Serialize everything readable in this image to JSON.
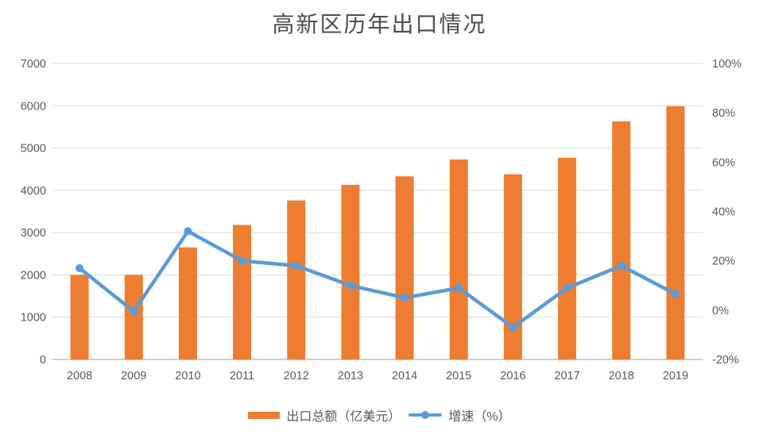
{
  "title": "高新区历年出口情况",
  "colors": {
    "bar": "#ED7D31",
    "line": "#5B9BD5",
    "grid": "#D9D9D9",
    "axis_line": "#BFBFBF",
    "text": "#595959",
    "title_text": "#4d4d4d",
    "background": "#FFFFFF"
  },
  "chart_data": {
    "type": "bar",
    "subtype": "combo-bar-line",
    "title": "高新区历年出口情况",
    "categories": [
      "2008",
      "2009",
      "2010",
      "2011",
      "2012",
      "2013",
      "2014",
      "2015",
      "2016",
      "2017",
      "2018",
      "2019"
    ],
    "series": [
      {
        "name": "出口总额（亿美元）",
        "type": "bar",
        "axis": "left",
        "color": "#ED7D31",
        "values": [
          2000,
          2000,
          2650,
          3180,
          3760,
          4130,
          4330,
          4730,
          4380,
          4770,
          5630,
          5990
        ]
      },
      {
        "name": "增速（%）",
        "type": "line",
        "axis": "right",
        "color": "#5B9BD5",
        "values": [
          17,
          -0.5,
          32,
          20,
          18,
          10,
          5,
          9,
          -7,
          9,
          18,
          6.5
        ]
      }
    ],
    "y_left_axis": {
      "min": 0,
      "max": 7000,
      "step": 1000,
      "ticks": [
        "0",
        "1000",
        "2000",
        "3000",
        "4000",
        "5000",
        "6000",
        "7000"
      ]
    },
    "y_right_axis": {
      "min": -20,
      "max": 100,
      "step": 20,
      "ticks": [
        "-20%",
        "0%",
        "20%",
        "40%",
        "60%",
        "80%",
        "100%"
      ]
    },
    "grid": true,
    "legend_position": "bottom"
  }
}
